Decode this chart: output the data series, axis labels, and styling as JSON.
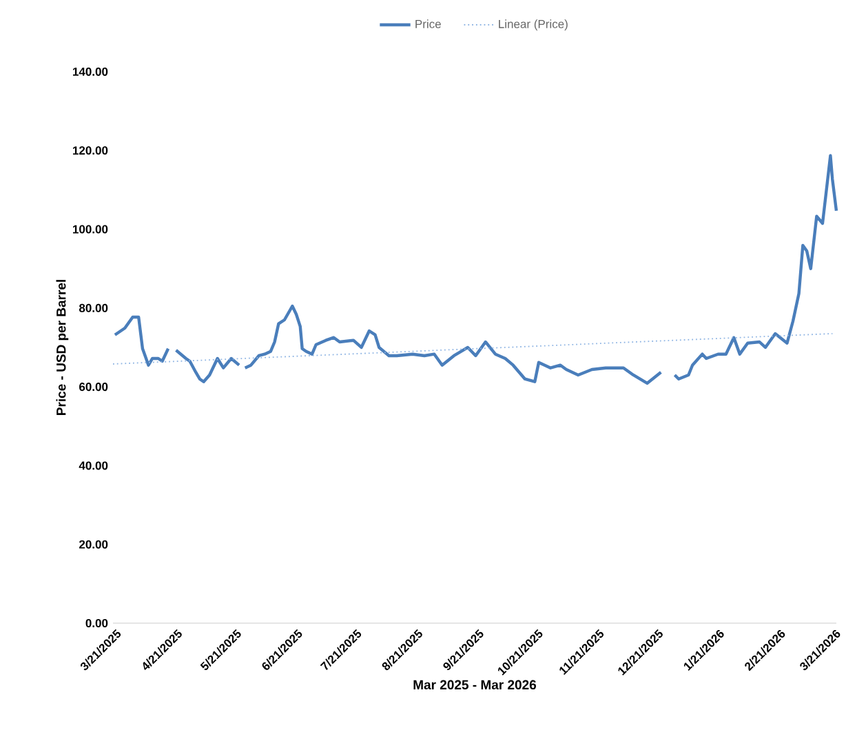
{
  "chart_data": {
    "type": "line",
    "xlabel": "Mar 2025 - Mar 2026",
    "ylabel": "Price - USD per Barrel",
    "xlim": [
      "2025-03-21",
      "2026-03-23"
    ],
    "ylim": [
      0,
      140
    ],
    "xticks": [
      {
        "value": "2025-03-21",
        "label": "3/21/2025"
      },
      {
        "value": "2025-04-21",
        "label": "4/21/2025"
      },
      {
        "value": "2025-05-21",
        "label": "5/21/2025"
      },
      {
        "value": "2025-06-21",
        "label": "6/21/2025"
      },
      {
        "value": "2025-07-21",
        "label": "7/21/2025"
      },
      {
        "value": "2025-08-21",
        "label": "8/21/2025"
      },
      {
        "value": "2025-09-21",
        "label": "9/21/2025"
      },
      {
        "value": "2025-10-21",
        "label": "10/21/2025"
      },
      {
        "value": "2025-11-21",
        "label": "11/21/2025"
      },
      {
        "value": "2025-12-21",
        "label": "12/21/2025"
      },
      {
        "value": "2026-01-21",
        "label": "1/21/2026"
      },
      {
        "value": "2026-02-21",
        "label": "2/21/2026"
      },
      {
        "value": "2026-03-21",
        "label": "3/21/2026"
      }
    ],
    "yticks": [
      {
        "value": 0,
        "label": "0.00"
      },
      {
        "value": 20,
        "label": "20.00"
      },
      {
        "value": 40,
        "label": "40.00"
      },
      {
        "value": 60,
        "label": "60.00"
      },
      {
        "value": 80,
        "label": "80.00"
      },
      {
        "value": 100,
        "label": "100.00"
      },
      {
        "value": 120,
        "label": "120.00"
      },
      {
        "value": 140,
        "label": "140.00"
      }
    ],
    "legend": "top",
    "series": [
      {
        "name": "Price",
        "color": "#4a7ebb",
        "line_style": "solid",
        "x": [
          "2025-03-22",
          "2025-03-27",
          "2025-03-31",
          "2025-04-03",
          "2025-04-05",
          "2025-04-08",
          "2025-04-10",
          "2025-04-13",
          "2025-04-15",
          "2025-04-18",
          "2025-04-20",
          "2025-04-22",
          "2025-04-27",
          "2025-04-29",
          "2025-05-02",
          "2025-05-04",
          "2025-05-06",
          "2025-05-09",
          "2025-05-13",
          "2025-05-16",
          "2025-05-20",
          "2025-05-24",
          "2025-05-25",
          "2025-05-27",
          "2025-05-30",
          "2025-06-03",
          "2025-06-06",
          "2025-06-09",
          "2025-06-11",
          "2025-06-13",
          "2025-06-16",
          "2025-06-20",
          "2025-06-22",
          "2025-06-24",
          "2025-06-25",
          "2025-06-27",
          "2025-06-30",
          "2025-07-02",
          "2025-07-07",
          "2025-07-11",
          "2025-07-14",
          "2025-07-21",
          "2025-07-25",
          "2025-07-29",
          "2025-08-01",
          "2025-08-03",
          "2025-08-08",
          "2025-08-12",
          "2025-08-20",
          "2025-08-26",
          "2025-08-31",
          "2025-09-04",
          "2025-09-10",
          "2025-09-17",
          "2025-09-21",
          "2025-09-26",
          "2025-10-01",
          "2025-10-06",
          "2025-10-10",
          "2025-10-16",
          "2025-10-21",
          "2025-10-23",
          "2025-10-29",
          "2025-11-03",
          "2025-11-06",
          "2025-11-12",
          "2025-11-19",
          "2025-11-26",
          "2025-12-05",
          "2025-12-10",
          "2025-12-17",
          "2025-12-24",
          "2025-12-27",
          "2025-12-31",
          "2026-01-02",
          "2026-01-07",
          "2026-01-09",
          "2026-01-14",
          "2026-01-16",
          "2026-01-22",
          "2026-01-26",
          "2026-01-30",
          "2026-02-02",
          "2026-02-06",
          "2026-02-12",
          "2026-02-15",
          "2026-02-20",
          "2026-02-26",
          "2026-03-01",
          "2026-03-04",
          "2026-03-06",
          "2026-03-08",
          "2026-03-10",
          "2026-03-13",
          "2026-03-16",
          "2026-03-20",
          "2026-03-21",
          "2026-03-23"
        ],
        "values": [
          73.2,
          74.9,
          77.7,
          77.7,
          69.7,
          65.5,
          67.2,
          67.2,
          66.5,
          69.7,
          null,
          69.3,
          67.2,
          66.5,
          63.7,
          62.0,
          61.3,
          63.0,
          67.2,
          64.8,
          67.2,
          65.5,
          null,
          64.8,
          65.5,
          67.9,
          68.3,
          69.0,
          71.4,
          76.0,
          77.0,
          80.5,
          78.4,
          75.3,
          69.7,
          69.0,
          68.3,
          70.7,
          71.8,
          72.5,
          71.4,
          71.8,
          70.0,
          74.2,
          73.2,
          70.0,
          67.9,
          67.9,
          68.3,
          67.9,
          68.3,
          65.5,
          67.9,
          70.0,
          67.9,
          71.4,
          68.3,
          67.2,
          65.5,
          62.0,
          61.3,
          66.2,
          64.8,
          65.5,
          64.4,
          63.0,
          64.4,
          64.8,
          64.8,
          63.0,
          60.9,
          63.7,
          null,
          63.0,
          62.0,
          63.0,
          65.5,
          68.3,
          67.2,
          68.3,
          68.3,
          72.5,
          68.3,
          71.1,
          71.4,
          70.0,
          73.5,
          71.1,
          76.7,
          83.7,
          95.9,
          94.5,
          90.0,
          103.3,
          101.5,
          118.7,
          112.7,
          104.7
        ]
      },
      {
        "name": "Linear (Price)",
        "type": "line",
        "color": "#8eb4e3",
        "line_style": "dotted",
        "x": [
          "2025-03-21",
          "2026-03-21"
        ],
        "values": [
          65.8,
          73.5
        ]
      }
    ]
  }
}
